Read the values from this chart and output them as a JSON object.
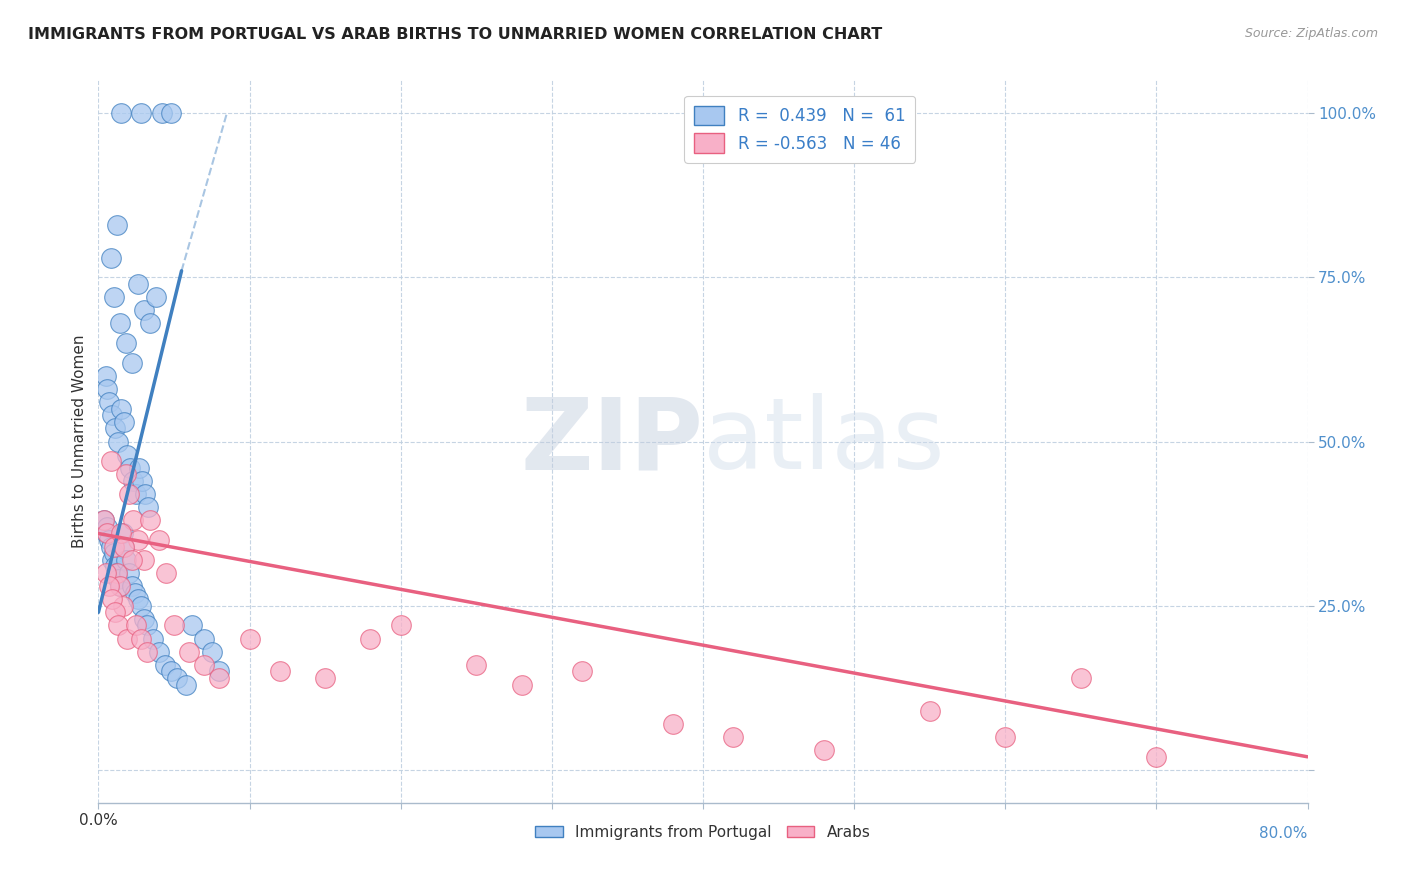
{
  "title": "IMMIGRANTS FROM PORTUGAL VS ARAB BIRTHS TO UNMARRIED WOMEN CORRELATION CHART",
  "source": "Source: ZipAtlas.com",
  "ylabel": "Births to Unmarried Women",
  "watermark_zip": "ZIP",
  "watermark_atlas": "atlas",
  "legend_r1": "R =  0.439   N =  61",
  "legend_r2": "R = -0.563   N = 46",
  "xlim": [
    0.0,
    80.0
  ],
  "ylim": [
    -5.0,
    105.0
  ],
  "xticks": [
    0.0,
    10.0,
    20.0,
    30.0,
    40.0,
    50.0,
    60.0,
    70.0,
    80.0
  ],
  "yticks": [
    0.0,
    25.0,
    50.0,
    75.0,
    100.0
  ],
  "blue_color": "#A8C8F0",
  "pink_color": "#F8B0C8",
  "blue_line_color": "#4080C0",
  "pink_line_color": "#E86080",
  "grid_color": "#C0D0E0",
  "bg_color": "#FFFFFF",
  "blue_scatter_x": [
    1.5,
    2.8,
    4.2,
    4.8,
    1.2,
    0.8,
    1.0,
    1.4,
    1.8,
    2.2,
    2.6,
    3.0,
    3.4,
    3.8,
    0.5,
    0.6,
    0.7,
    0.9,
    1.1,
    1.3,
    1.5,
    1.7,
    1.9,
    2.1,
    2.3,
    2.5,
    2.7,
    2.9,
    3.1,
    3.3,
    0.4,
    0.5,
    0.6,
    0.7,
    0.8,
    0.9,
    1.0,
    1.1,
    1.2,
    1.3,
    1.4,
    1.6,
    1.7,
    1.8,
    2.0,
    2.2,
    2.4,
    2.6,
    2.8,
    3.0,
    3.2,
    3.6,
    4.0,
    4.4,
    4.8,
    5.2,
    5.8,
    6.2,
    7.0,
    7.5,
    8.0
  ],
  "blue_scatter_y": [
    100.0,
    100.0,
    100.0,
    100.0,
    83.0,
    78.0,
    72.0,
    68.0,
    65.0,
    62.0,
    74.0,
    70.0,
    68.0,
    72.0,
    60.0,
    58.0,
    56.0,
    54.0,
    52.0,
    50.0,
    55.0,
    53.0,
    48.0,
    46.0,
    44.0,
    42.0,
    46.0,
    44.0,
    42.0,
    40.0,
    38.0,
    36.0,
    37.0,
    35.0,
    34.0,
    32.0,
    33.0,
    31.0,
    30.0,
    29.0,
    28.0,
    36.0,
    34.0,
    32.0,
    30.0,
    28.0,
    27.0,
    26.0,
    25.0,
    23.0,
    22.0,
    20.0,
    18.0,
    16.0,
    15.0,
    14.0,
    13.0,
    22.0,
    20.0,
    18.0,
    15.0
  ],
  "pink_scatter_x": [
    0.4,
    0.6,
    0.8,
    1.0,
    1.2,
    1.4,
    1.6,
    1.8,
    2.0,
    2.3,
    2.6,
    3.0,
    3.4,
    0.5,
    0.7,
    0.9,
    1.1,
    1.3,
    1.5,
    1.7,
    1.9,
    2.2,
    2.5,
    2.8,
    3.2,
    4.0,
    4.5,
    5.0,
    6.0,
    7.0,
    8.0,
    10.0,
    12.0,
    15.0,
    20.0,
    28.0,
    38.0,
    42.0,
    48.0,
    55.0,
    60.0,
    65.0,
    70.0,
    32.0,
    25.0,
    18.0
  ],
  "pink_scatter_y": [
    38.0,
    36.0,
    47.0,
    34.0,
    30.0,
    28.0,
    25.0,
    45.0,
    42.0,
    38.0,
    35.0,
    32.0,
    38.0,
    30.0,
    28.0,
    26.0,
    24.0,
    22.0,
    36.0,
    34.0,
    20.0,
    32.0,
    22.0,
    20.0,
    18.0,
    35.0,
    30.0,
    22.0,
    18.0,
    16.0,
    14.0,
    20.0,
    15.0,
    14.0,
    22.0,
    13.0,
    7.0,
    5.0,
    3.0,
    9.0,
    5.0,
    14.0,
    2.0,
    15.0,
    16.0,
    20.0
  ],
  "blue_trend_x0": 0.0,
  "blue_trend_y0": 24.0,
  "blue_trend_x1": 5.5,
  "blue_trend_y1": 76.0,
  "blue_dash_x0": 5.5,
  "blue_dash_y0": 76.0,
  "blue_dash_x1": 8.5,
  "blue_dash_y1": 100.0,
  "pink_trend_x0": 0.0,
  "pink_trend_y0": 36.0,
  "pink_trend_x1": 80.0,
  "pink_trend_y1": 2.0
}
